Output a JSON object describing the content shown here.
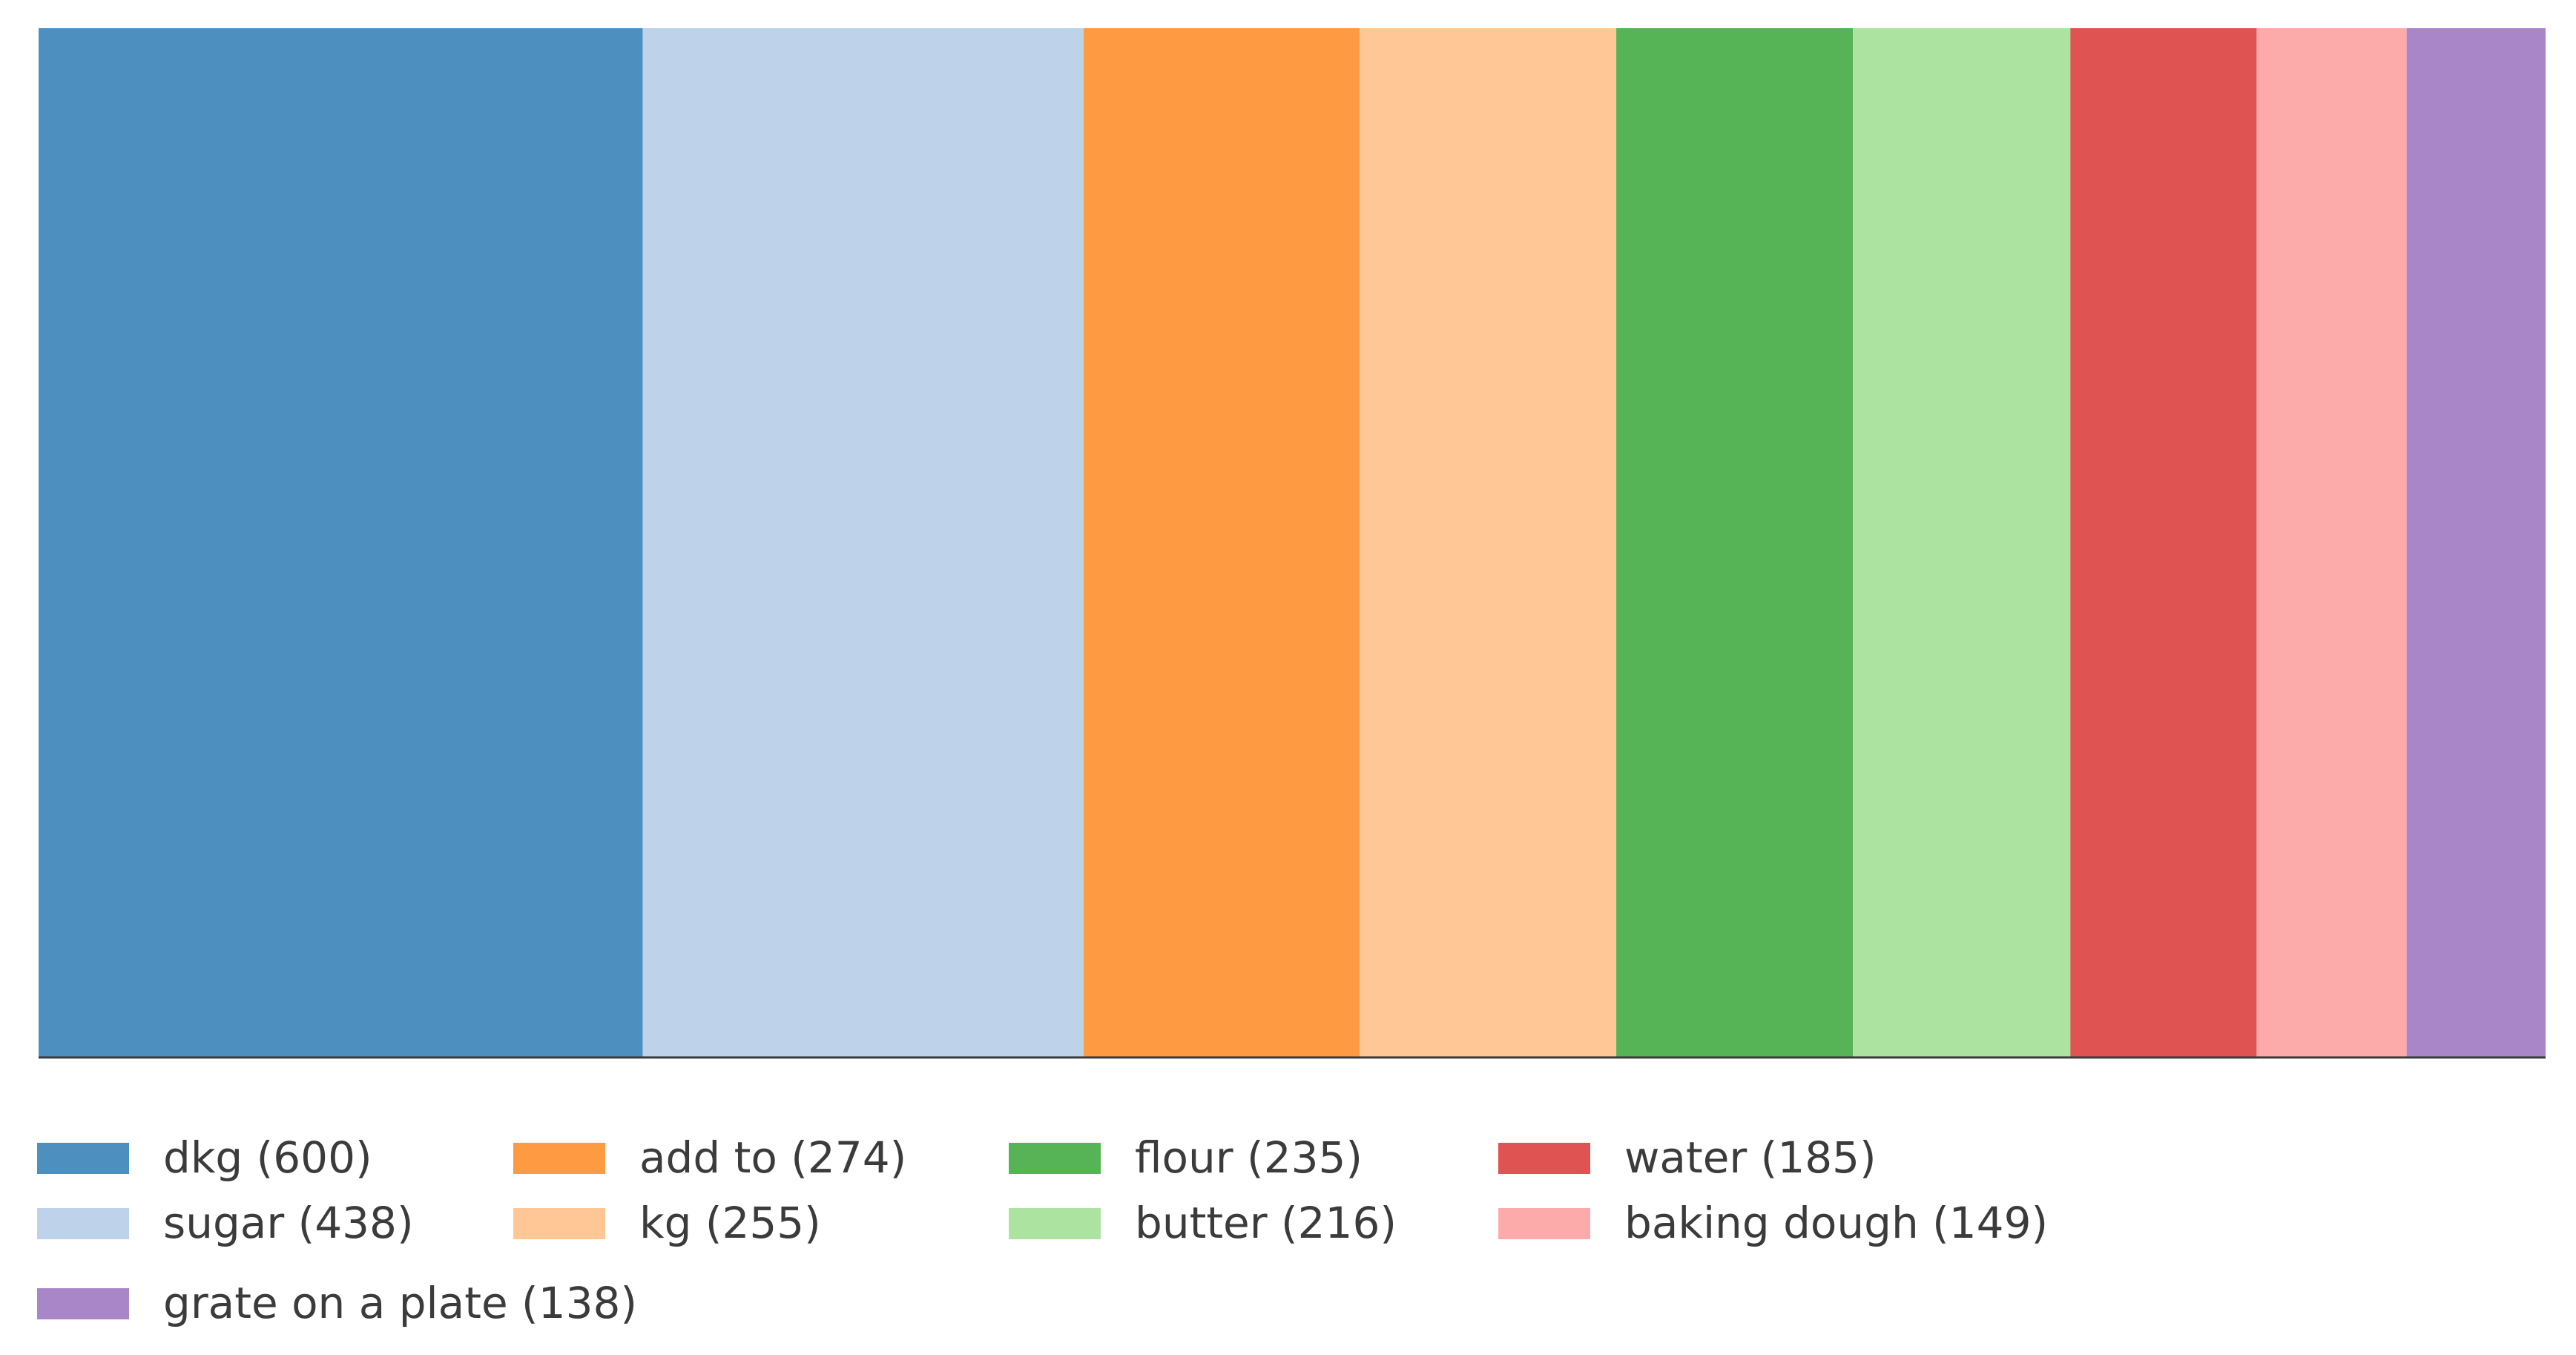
{
  "chart_data": {
    "type": "bar",
    "categories": [
      "dkg",
      "sugar",
      "add to",
      "kg",
      "flour",
      "butter",
      "water",
      "baking dough",
      "grate on a plate"
    ],
    "values": [
      600,
      438,
      274,
      255,
      235,
      216,
      185,
      149,
      138
    ],
    "colors": [
      "#4d90c0",
      "#bed2ea",
      "#fe9a42",
      "#ffc796",
      "#56b356",
      "#ade3a0",
      "#df5352",
      "#fdaaaa",
      "#a886c8"
    ],
    "legend": {
      "entries": [
        "dkg (600)",
        "sugar (438)",
        "add to (274)",
        "kg (255)",
        "flour (235)",
        "butter (216)",
        "water (185)",
        "baking dough (149)",
        "grate on a plate (138)"
      ],
      "placement": "bottom"
    },
    "title": "",
    "xlabel": "",
    "ylabel": "",
    "grid": false
  }
}
